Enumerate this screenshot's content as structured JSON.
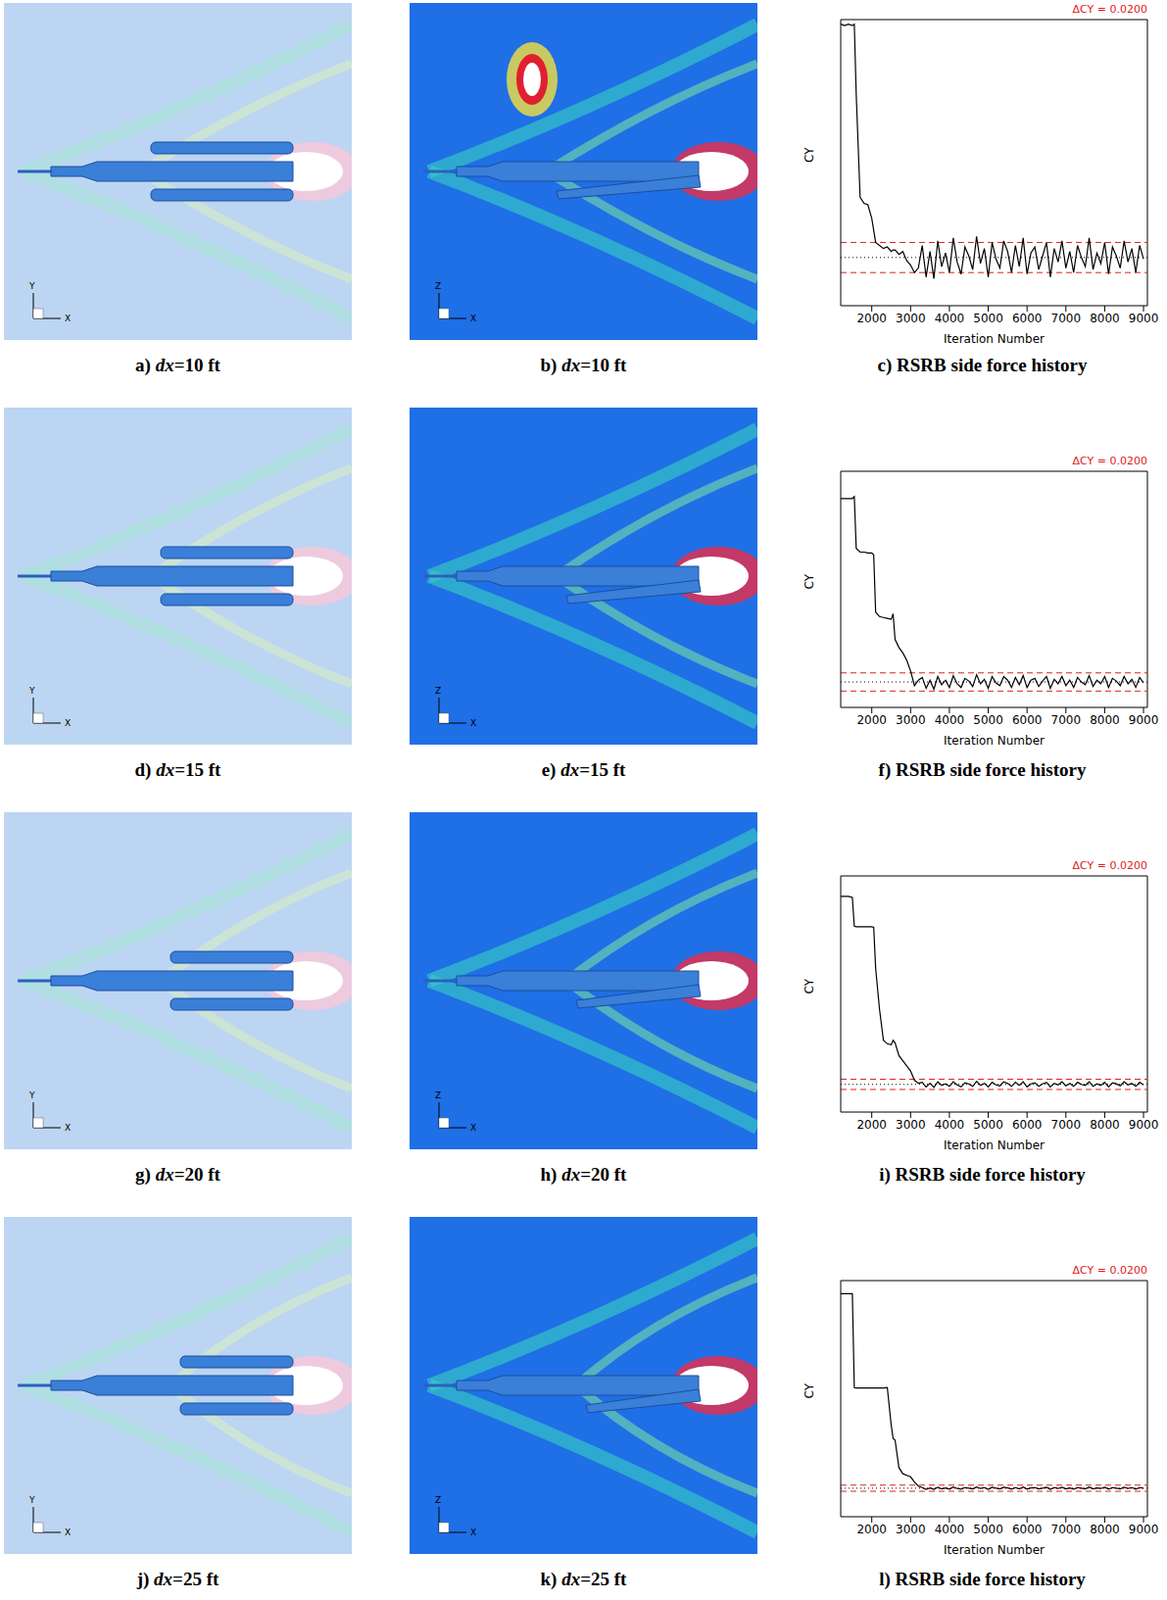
{
  "images": [
    {
      "caption": "a) dx=10 ft",
      "axes": [
        "Y",
        "X"
      ]
    },
    {
      "caption": "b) dx=10 ft",
      "axes": [
        "Z",
        "X"
      ]
    },
    {
      "caption": "d) dx=15 ft",
      "axes": [
        "Y",
        "X"
      ]
    },
    {
      "caption": "e) dx=15 ft",
      "axes": [
        "Z",
        "X"
      ]
    },
    {
      "caption": "g) dx=20 ft",
      "axes": [
        "Y",
        "X"
      ]
    },
    {
      "caption": "h) dx=20 ft",
      "axes": [
        "Z",
        "X"
      ]
    },
    {
      "caption": "j) dx=25 ft",
      "axes": [
        "Y",
        "X"
      ]
    },
    {
      "caption": "k) dx=25 ft",
      "axes": [
        "Z",
        "X"
      ]
    }
  ],
  "chart_data": [
    {
      "type": "line",
      "caption": "c) RSRB side force history",
      "annotation": "ΔCY = 0.0200",
      "x_label": "Iteration Number",
      "y_label": "CY",
      "color": "#000000",
      "tick_labels": "x",
      "xlim": [
        1200,
        9100
      ],
      "xticks": [
        2000,
        3000,
        4000,
        5000,
        6000,
        7000,
        8000,
        9000
      ],
      "ylim": [
        0,
        0.19
      ],
      "yticks": [],
      "mean": 0.032,
      "band": [
        0.022,
        0.042
      ],
      "x": [
        1200,
        1300,
        1400,
        1500,
        1550,
        1600,
        1700,
        1800,
        1900,
        2000,
        2050,
        2100,
        2200,
        2300,
        2400,
        2500,
        2550,
        2600,
        2700,
        2800,
        2900,
        3000,
        3100,
        3200,
        3300,
        3400,
        3500,
        3600,
        3700,
        3800,
        3900,
        4000,
        4100,
        4200,
        4300,
        4400,
        4500,
        4600,
        4700,
        4800,
        4900,
        5000,
        5100,
        5200,
        5300,
        5400,
        5500,
        5600,
        5700,
        5800,
        5900,
        6000,
        6100,
        6200,
        6300,
        6400,
        6500,
        6600,
        6700,
        6800,
        6900,
        7000,
        7100,
        7200,
        7300,
        7400,
        7500,
        7600,
        7700,
        7800,
        7900,
        8000,
        8100,
        8200,
        8300,
        8400,
        8500,
        8600,
        8700,
        8800,
        8900,
        9000
      ],
      "values": [
        0.187,
        0.186,
        0.187,
        0.186,
        0.187,
        0.14,
        0.072,
        0.068,
        0.067,
        0.058,
        0.05,
        0.042,
        0.04,
        0.038,
        0.039,
        0.036,
        0.037,
        0.037,
        0.034,
        0.036,
        0.03,
        0.027,
        0.022,
        0.025,
        0.04,
        0.019,
        0.036,
        0.018,
        0.043,
        0.026,
        0.035,
        0.022,
        0.045,
        0.029,
        0.021,
        0.039,
        0.033,
        0.024,
        0.046,
        0.028,
        0.038,
        0.019,
        0.042,
        0.031,
        0.025,
        0.043,
        0.036,
        0.022,
        0.04,
        0.026,
        0.045,
        0.021,
        0.035,
        0.039,
        0.024,
        0.033,
        0.042,
        0.019,
        0.038,
        0.029,
        0.043,
        0.025,
        0.036,
        0.022,
        0.04,
        0.032,
        0.026,
        0.045,
        0.024,
        0.035,
        0.028,
        0.042,
        0.021,
        0.039,
        0.033,
        0.025,
        0.043,
        0.029,
        0.038,
        0.022,
        0.04,
        0.031
      ]
    },
    {
      "type": "line",
      "caption": "f) RSRB side force history",
      "annotation": "ΔCY = 0.0200",
      "x_label": "Iteration Number",
      "y_label": "CY",
      "color": "#000000",
      "tick_labels": "x",
      "xlim": [
        1200,
        9100
      ],
      "xticks": [
        2000,
        3000,
        4000,
        5000,
        6000,
        7000,
        8000,
        9000
      ],
      "ylim": [
        0,
        0.26
      ],
      "yticks": [],
      "mean": 0.028,
      "band": [
        0.018,
        0.038
      ],
      "x": [
        1200,
        1300,
        1400,
        1500,
        1550,
        1600,
        1700,
        1800,
        1900,
        2000,
        2050,
        2100,
        2200,
        2300,
        2400,
        2500,
        2550,
        2600,
        2700,
        2800,
        2900,
        3000,
        3100,
        3200,
        3300,
        3400,
        3500,
        3600,
        3700,
        3800,
        3900,
        4000,
        4100,
        4200,
        4300,
        4400,
        4500,
        4600,
        4700,
        4800,
        4900,
        5000,
        5100,
        5200,
        5300,
        5400,
        5500,
        5600,
        5700,
        5800,
        5900,
        6000,
        6100,
        6200,
        6300,
        6400,
        6500,
        6600,
        6700,
        6800,
        6900,
        7000,
        7100,
        7200,
        7300,
        7400,
        7500,
        7600,
        7700,
        7800,
        7900,
        8000,
        8100,
        8200,
        8300,
        8400,
        8500,
        8600,
        8700,
        8800,
        8900,
        9000
      ],
      "values": [
        0.23,
        0.23,
        0.23,
        0.23,
        0.232,
        0.175,
        0.171,
        0.171,
        0.17,
        0.17,
        0.168,
        0.105,
        0.1,
        0.099,
        0.098,
        0.097,
        0.103,
        0.075,
        0.066,
        0.06,
        0.052,
        0.04,
        0.024,
        0.03,
        0.033,
        0.021,
        0.03,
        0.02,
        0.034,
        0.025,
        0.03,
        0.022,
        0.035,
        0.026,
        0.022,
        0.032,
        0.029,
        0.023,
        0.036,
        0.026,
        0.031,
        0.021,
        0.034,
        0.027,
        0.024,
        0.034,
        0.03,
        0.022,
        0.033,
        0.025,
        0.035,
        0.022,
        0.03,
        0.032,
        0.023,
        0.029,
        0.034,
        0.021,
        0.031,
        0.026,
        0.034,
        0.024,
        0.03,
        0.022,
        0.033,
        0.028,
        0.025,
        0.035,
        0.023,
        0.03,
        0.026,
        0.034,
        0.022,
        0.032,
        0.029,
        0.024,
        0.034,
        0.026,
        0.031,
        0.022,
        0.033,
        0.027
      ]
    },
    {
      "type": "line",
      "caption": "i) RSRB side force history",
      "annotation": "ΔCY = 0.0200",
      "x_label": "Iteration Number",
      "y_label": "CY",
      "color": "#000000",
      "tick_labels": "x",
      "xlim": [
        1200,
        9100
      ],
      "xticks": [
        2000,
        3000,
        4000,
        5000,
        6000,
        7000,
        8000,
        9000
      ],
      "ylim": [
        0,
        0.46
      ],
      "yticks": [],
      "mean": 0.054,
      "band": [
        0.044,
        0.064
      ],
      "x": [
        1200,
        1300,
        1400,
        1500,
        1550,
        1600,
        1700,
        1800,
        1900,
        2000,
        2050,
        2100,
        2200,
        2300,
        2400,
        2500,
        2550,
        2600,
        2700,
        2800,
        2900,
        3000,
        3100,
        3200,
        3300,
        3400,
        3500,
        3600,
        3700,
        3800,
        3900,
        4000,
        4100,
        4200,
        4300,
        4400,
        4500,
        4600,
        4700,
        4800,
        4900,
        5000,
        5100,
        5200,
        5300,
        5400,
        5500,
        5600,
        5700,
        5800,
        5900,
        6000,
        6100,
        6200,
        6300,
        6400,
        6500,
        6600,
        6700,
        6800,
        6900,
        7000,
        7100,
        7200,
        7300,
        7400,
        7500,
        7600,
        7700,
        7800,
        7900,
        8000,
        8100,
        8200,
        8300,
        8400,
        8500,
        8600,
        8700,
        8800,
        8900,
        9000
      ],
      "values": [
        0.42,
        0.42,
        0.42,
        0.418,
        0.362,
        0.361,
        0.361,
        0.361,
        0.361,
        0.361,
        0.36,
        0.28,
        0.2,
        0.14,
        0.133,
        0.131,
        0.14,
        0.135,
        0.11,
        0.1,
        0.09,
        0.08,
        0.062,
        0.056,
        0.058,
        0.049,
        0.056,
        0.048,
        0.059,
        0.052,
        0.055,
        0.05,
        0.059,
        0.053,
        0.049,
        0.057,
        0.055,
        0.05,
        0.06,
        0.052,
        0.056,
        0.049,
        0.058,
        0.053,
        0.051,
        0.059,
        0.056,
        0.05,
        0.058,
        0.052,
        0.059,
        0.049,
        0.055,
        0.057,
        0.05,
        0.055,
        0.058,
        0.049,
        0.056,
        0.053,
        0.059,
        0.051,
        0.056,
        0.05,
        0.058,
        0.054,
        0.052,
        0.059,
        0.05,
        0.055,
        0.052,
        0.058,
        0.049,
        0.057,
        0.055,
        0.051,
        0.059,
        0.053,
        0.056,
        0.05,
        0.058,
        0.053
      ]
    },
    {
      "type": "line",
      "caption": "l) RSRB side force history",
      "annotation": "ΔCY = 0.0200",
      "x_label": "Iteration Number",
      "y_label": "CY",
      "color": "#000000",
      "tick_labels": "x",
      "xlim": [
        1200,
        9100
      ],
      "xticks": [
        2000,
        3000,
        4000,
        5000,
        6000,
        7000,
        8000,
        9000
      ],
      "ylim": [
        0,
        0.77
      ],
      "yticks": [],
      "mean": 0.093,
      "band": [
        0.083,
        0.103
      ],
      "x": [
        1200,
        1300,
        1400,
        1500,
        1550,
        1600,
        1700,
        1800,
        1900,
        2000,
        2050,
        2100,
        2200,
        2300,
        2400,
        2500,
        2550,
        2600,
        2700,
        2800,
        2900,
        3000,
        3100,
        3200,
        3300,
        3400,
        3500,
        3600,
        3700,
        3800,
        3900,
        4000,
        4100,
        4200,
        4300,
        4400,
        4500,
        4600,
        4700,
        4800,
        4900,
        5000,
        5100,
        5200,
        5300,
        5400,
        5500,
        5600,
        5700,
        5800,
        5900,
        6000,
        6100,
        6200,
        6300,
        6400,
        6500,
        6600,
        6700,
        6800,
        6900,
        7000,
        7100,
        7200,
        7300,
        7400,
        7500,
        7600,
        7700,
        7800,
        7900,
        8000,
        8100,
        8200,
        8300,
        8400,
        8500,
        8600,
        8700,
        8800,
        8900,
        9000
      ],
      "values": [
        0.727,
        0.727,
        0.727,
        0.727,
        0.421,
        0.42,
        0.42,
        0.42,
        0.42,
        0.42,
        0.42,
        0.42,
        0.42,
        0.42,
        0.421,
        0.3,
        0.255,
        0.25,
        0.16,
        0.14,
        0.135,
        0.13,
        0.113,
        0.1,
        0.095,
        0.089,
        0.094,
        0.089,
        0.096,
        0.091,
        0.094,
        0.09,
        0.097,
        0.092,
        0.09,
        0.095,
        0.093,
        0.091,
        0.097,
        0.092,
        0.095,
        0.089,
        0.096,
        0.093,
        0.091,
        0.096,
        0.094,
        0.09,
        0.095,
        0.091,
        0.097,
        0.09,
        0.094,
        0.095,
        0.091,
        0.093,
        0.096,
        0.089,
        0.095,
        0.092,
        0.096,
        0.091,
        0.094,
        0.09,
        0.095,
        0.093,
        0.091,
        0.097,
        0.091,
        0.094,
        0.092,
        0.096,
        0.09,
        0.095,
        0.093,
        0.091,
        0.096,
        0.092,
        0.095,
        0.09,
        0.095,
        0.093
      ]
    }
  ]
}
